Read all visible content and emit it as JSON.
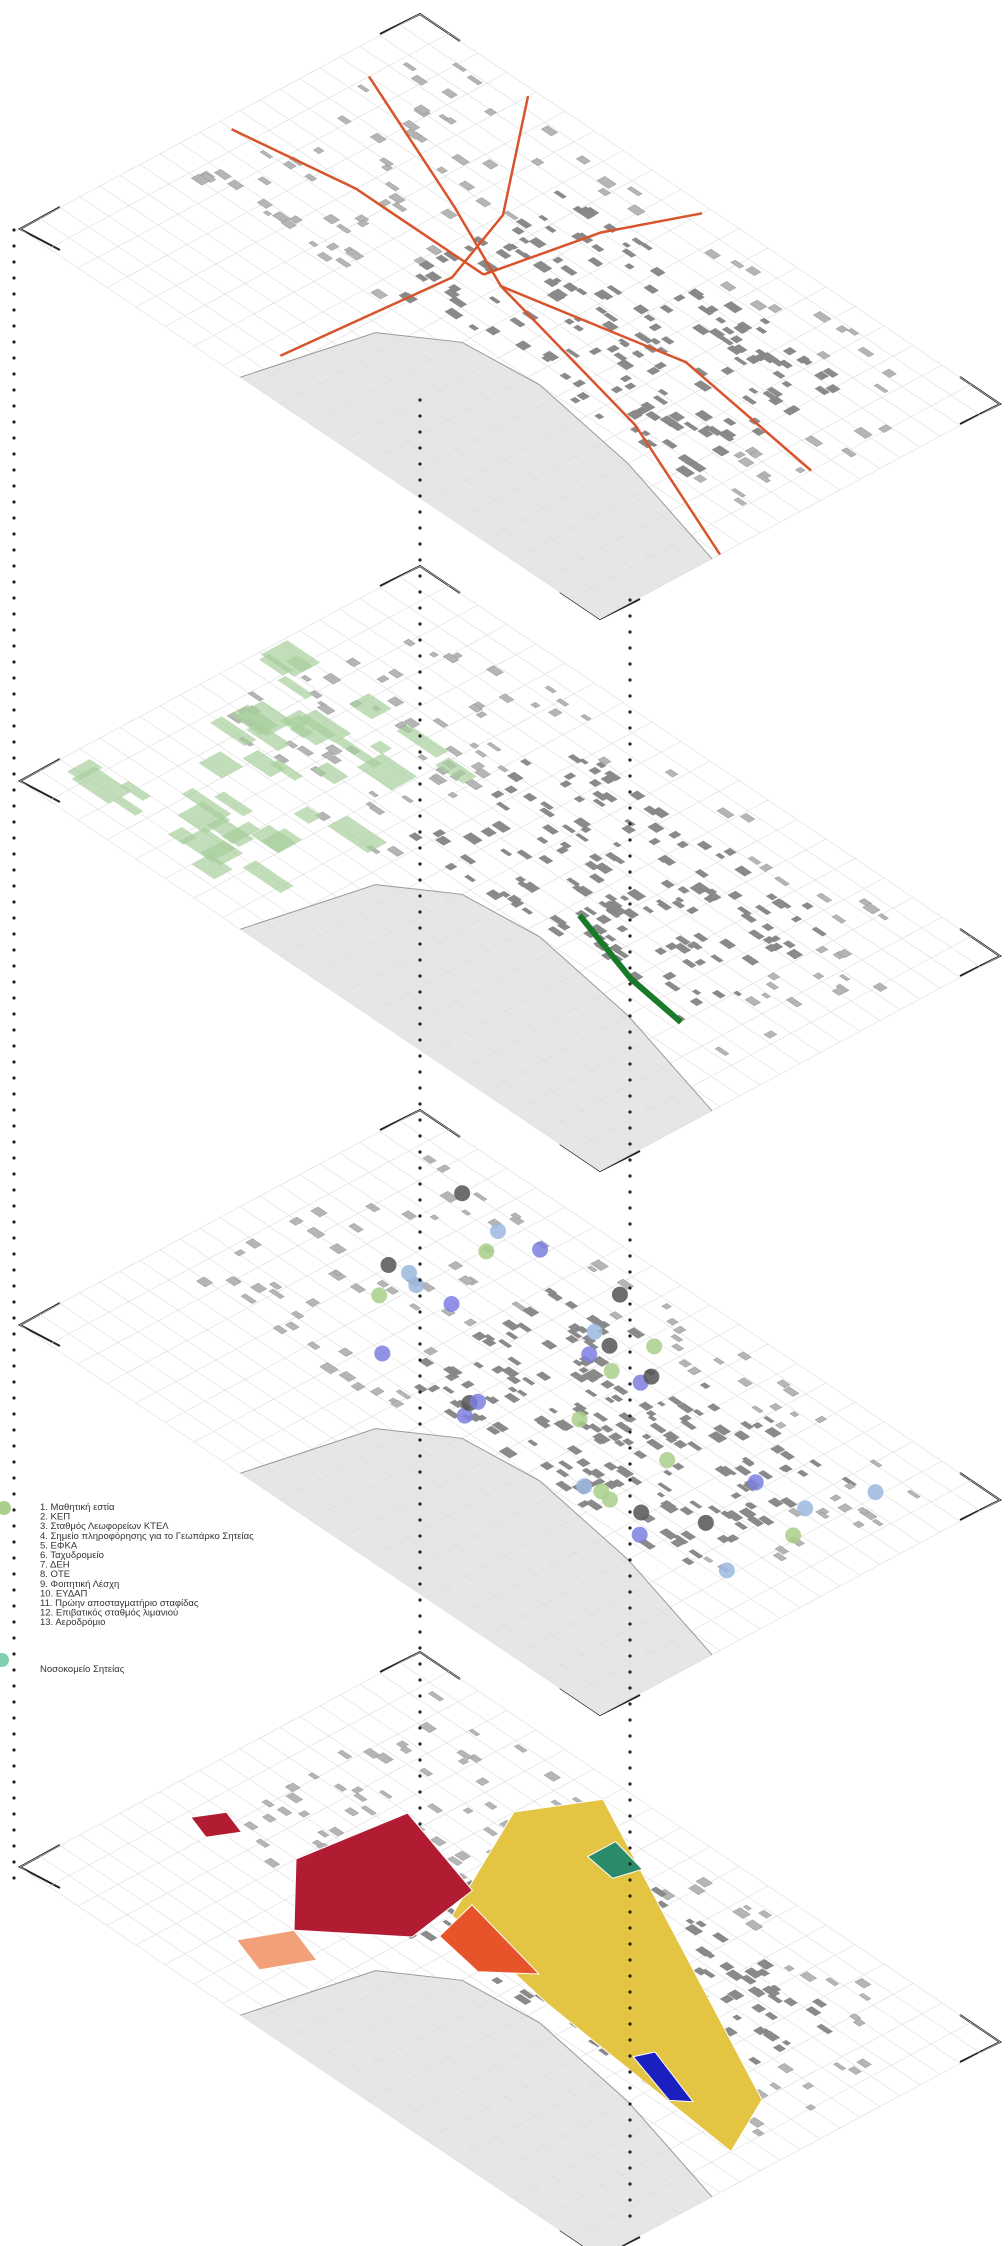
{
  "legend": {
    "items": [
      "1. Μαθητική εστία",
      "2. ΚΕΠ",
      "3. Σταθμός Λεωφορείων ΚΤΕΛ",
      "4. Σημείο πληροφόρησης για το Γεωπάρκο Σητείας",
      "5. ΕΦΚΑ",
      "6. Ταχυδρομείο",
      "7. ΔΕΗ",
      "8. ΟΤΕ",
      "9. Φοιτητική Λέσχη",
      "10. ΕΥΔΑΠ",
      "11. Πρώην αποσταγματήριο σταφίδας",
      "12. Επιβατικός σταθμός λιμανιού",
      "13. Αεροδρόμιο"
    ],
    "hospital": "Νοσοκομείο Σητείας"
  }
}
